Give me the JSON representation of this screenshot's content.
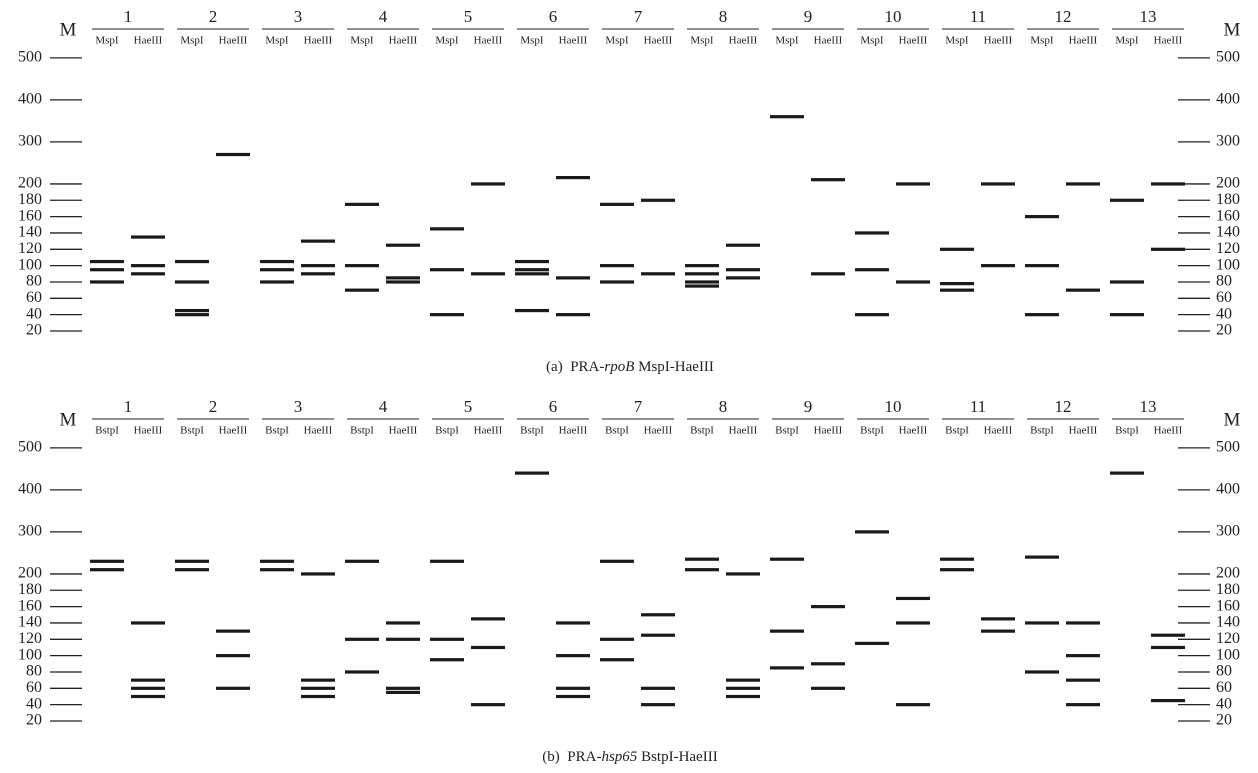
{
  "chart_data": [
    {
      "type": "gel",
      "marker_label": "M",
      "caption": [
        "(a)  PRA-",
        "rpoB",
        " MspI-HaeIII"
      ],
      "ylim": [
        20,
        500
      ],
      "yticks": [
        20,
        40,
        60,
        80,
        100,
        120,
        140,
        160,
        180,
        200,
        300,
        400,
        500
      ],
      "color": "#1a1a1a",
      "lanes": [
        {
          "name": "1",
          "digests": [
            {
              "name": "MspI",
              "values": [
                105,
                95,
                80
              ]
            },
            {
              "name": "HaeIII",
              "values": [
                135,
                100,
                90
              ]
            }
          ]
        },
        {
          "name": "2",
          "digests": [
            {
              "name": "MspI",
              "values": [
                105,
                80,
                45,
                40
              ]
            },
            {
              "name": "HaeIII",
              "values": [
                270
              ]
            }
          ]
        },
        {
          "name": "3",
          "digests": [
            {
              "name": "MspI",
              "values": [
                105,
                95,
                80
              ]
            },
            {
              "name": "HaeIII",
              "values": [
                130,
                100,
                90
              ]
            }
          ]
        },
        {
          "name": "4",
          "digests": [
            {
              "name": "MspI",
              "values": [
                175,
                100,
                70
              ]
            },
            {
              "name": "HaeIII",
              "values": [
                125,
                85,
                80
              ]
            }
          ]
        },
        {
          "name": "5",
          "digests": [
            {
              "name": "MspI",
              "values": [
                145,
                95,
                40
              ]
            },
            {
              "name": "HaeIII",
              "values": [
                200,
                90
              ]
            }
          ]
        },
        {
          "name": "6",
          "digests": [
            {
              "name": "MspI",
              "values": [
                105,
                95,
                90,
                45
              ]
            },
            {
              "name": "HaeIII",
              "values": [
                215,
                85,
                40
              ]
            }
          ]
        },
        {
          "name": "7",
          "digests": [
            {
              "name": "MspI",
              "values": [
                175,
                100,
                80
              ]
            },
            {
              "name": "HaeIII",
              "values": [
                180,
                90
              ]
            }
          ]
        },
        {
          "name": "8",
          "digests": [
            {
              "name": "MspI",
              "values": [
                100,
                90,
                80,
                75
              ]
            },
            {
              "name": "HaeIII",
              "values": [
                125,
                95,
                85
              ]
            }
          ]
        },
        {
          "name": "9",
          "digests": [
            {
              "name": "MspI",
              "values": [
                360
              ]
            },
            {
              "name": "HaeIII",
              "values": [
                210,
                90
              ]
            }
          ]
        },
        {
          "name": "10",
          "digests": [
            {
              "name": "MspI",
              "values": [
                140,
                95,
                40
              ]
            },
            {
              "name": "HaeIII",
              "values": [
                200,
                80
              ]
            }
          ]
        },
        {
          "name": "11",
          "digests": [
            {
              "name": "MspI",
              "values": [
                120,
                78,
                70
              ]
            },
            {
              "name": "HaeIII",
              "values": [
                200,
                100
              ]
            }
          ]
        },
        {
          "name": "12",
          "digests": [
            {
              "name": "MspI",
              "values": [
                160,
                100,
                40
              ]
            },
            {
              "name": "HaeIII",
              "values": [
                200,
                70
              ]
            }
          ]
        },
        {
          "name": "13",
          "digests": [
            {
              "name": "MspI",
              "values": [
                180,
                80,
                40
              ]
            },
            {
              "name": "HaeIII",
              "values": [
                200,
                120
              ]
            }
          ]
        }
      ]
    },
    {
      "type": "gel",
      "marker_label": "M",
      "caption": [
        "(b)  PRA-",
        "hsp65",
        " BstpI-HaeIII"
      ],
      "ylim": [
        20,
        500
      ],
      "yticks": [
        20,
        40,
        60,
        80,
        100,
        120,
        140,
        160,
        180,
        200,
        300,
        400,
        500
      ],
      "color": "#1a1a1a",
      "lanes": [
        {
          "name": "1",
          "digests": [
            {
              "name": "BstpI",
              "values": [
                230,
                210
              ]
            },
            {
              "name": "HaeIII",
              "values": [
                140,
                70,
                60,
                50
              ]
            }
          ]
        },
        {
          "name": "2",
          "digests": [
            {
              "name": "BstpI",
              "values": [
                230,
                210
              ]
            },
            {
              "name": "HaeIII",
              "values": [
                130,
                100,
                60
              ]
            }
          ]
        },
        {
          "name": "3",
          "digests": [
            {
              "name": "BstpI",
              "values": [
                230,
                210
              ]
            },
            {
              "name": "HaeIII",
              "values": [
                200,
                70,
                60,
                50
              ]
            }
          ]
        },
        {
          "name": "4",
          "digests": [
            {
              "name": "BstpI",
              "values": [
                230,
                120,
                80
              ]
            },
            {
              "name": "HaeIII",
              "values": [
                140,
                120,
                60,
                55
              ]
            }
          ]
        },
        {
          "name": "5",
          "digests": [
            {
              "name": "BstpI",
              "values": [
                230,
                120,
                95
              ]
            },
            {
              "name": "HaeIII",
              "values": [
                145,
                110,
                40
              ]
            }
          ]
        },
        {
          "name": "6",
          "digests": [
            {
              "name": "BstpI",
              "values": [
                440
              ]
            },
            {
              "name": "HaeIII",
              "values": [
                140,
                100,
                60,
                50
              ]
            }
          ]
        },
        {
          "name": "7",
          "digests": [
            {
              "name": "BstpI",
              "values": [
                230,
                120,
                95
              ]
            },
            {
              "name": "HaeIII",
              "values": [
                150,
                125,
                60,
                40
              ]
            }
          ]
        },
        {
          "name": "8",
          "digests": [
            {
              "name": "BstpI",
              "values": [
                235,
                210
              ]
            },
            {
              "name": "HaeIII",
              "values": [
                200,
                70,
                60,
                50
              ]
            }
          ]
        },
        {
          "name": "9",
          "digests": [
            {
              "name": "BstpI",
              "values": [
                235,
                130,
                85
              ]
            },
            {
              "name": "HaeIII",
              "values": [
                160,
                90,
                60
              ]
            }
          ]
        },
        {
          "name": "10",
          "digests": [
            {
              "name": "BstpI",
              "values": [
                300,
                115
              ]
            },
            {
              "name": "HaeIII",
              "values": [
                170,
                140,
                40
              ]
            }
          ]
        },
        {
          "name": "11",
          "digests": [
            {
              "name": "BstpI",
              "values": [
                235,
                210
              ]
            },
            {
              "name": "HaeIII",
              "values": [
                145,
                130
              ]
            }
          ]
        },
        {
          "name": "12",
          "digests": [
            {
              "name": "BstpI",
              "values": [
                240,
                140,
                80
              ]
            },
            {
              "name": "HaeIII",
              "values": [
                140,
                100,
                70,
                40
              ]
            }
          ]
        },
        {
          "name": "13",
          "digests": [
            {
              "name": "BstpI",
              "values": [
                440
              ]
            },
            {
              "name": "HaeIII",
              "values": [
                125,
                110,
                45
              ]
            }
          ]
        }
      ]
    }
  ]
}
